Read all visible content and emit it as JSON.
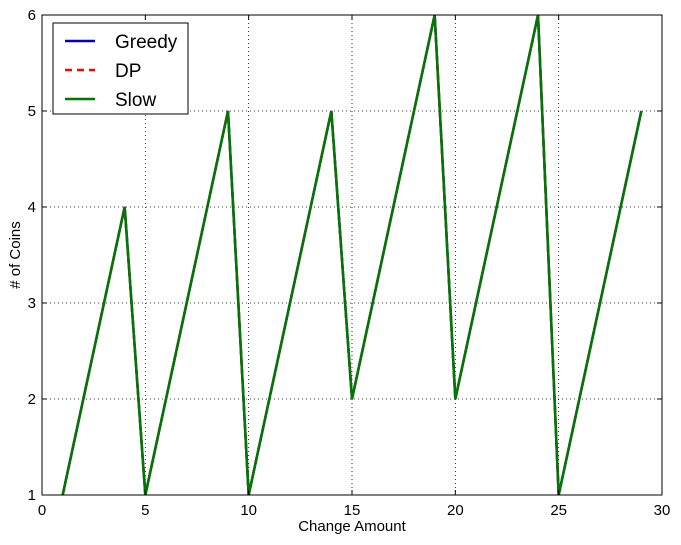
{
  "chart_data": {
    "type": "line",
    "title": "",
    "xlabel": "Change Amount",
    "ylabel": "# of Coins",
    "xlim": [
      0,
      30
    ],
    "ylim": [
      1,
      6
    ],
    "xticks": [
      0,
      5,
      10,
      15,
      20,
      25,
      30
    ],
    "yticks": [
      1,
      2,
      3,
      4,
      5,
      6
    ],
    "grid": true,
    "legend_position": "top-left",
    "x": [
      1,
      2,
      3,
      4,
      5,
      6,
      7,
      8,
      9,
      10,
      11,
      12,
      13,
      14,
      15,
      16,
      17,
      18,
      19,
      20,
      21,
      22,
      23,
      24,
      25,
      26,
      27,
      28,
      29
    ],
    "series": [
      {
        "name": "Greedy",
        "color": "#0000cc",
        "style": "solid",
        "values": [
          1,
          2,
          3,
          4,
          1,
          2,
          3,
          4,
          5,
          1,
          2,
          3,
          4,
          5,
          2,
          3,
          4,
          5,
          6,
          2,
          3,
          4,
          5,
          6,
          1,
          2,
          3,
          4,
          5
        ]
      },
      {
        "name": "DP",
        "color": "#ff0000",
        "style": "dashed",
        "values": [
          1,
          2,
          3,
          4,
          1,
          2,
          3,
          4,
          5,
          1,
          2,
          3,
          4,
          5,
          2,
          3,
          4,
          5,
          6,
          2,
          3,
          4,
          5,
          6,
          1,
          2,
          3,
          4,
          5
        ]
      },
      {
        "name": "Slow",
        "color": "#007700",
        "style": "solid",
        "values": [
          1,
          2,
          3,
          4,
          1,
          2,
          3,
          4,
          5,
          1,
          2,
          3,
          4,
          5,
          2,
          3,
          4,
          5,
          6,
          2,
          3,
          4,
          5,
          6,
          1,
          2,
          3,
          4,
          5
        ]
      }
    ]
  }
}
